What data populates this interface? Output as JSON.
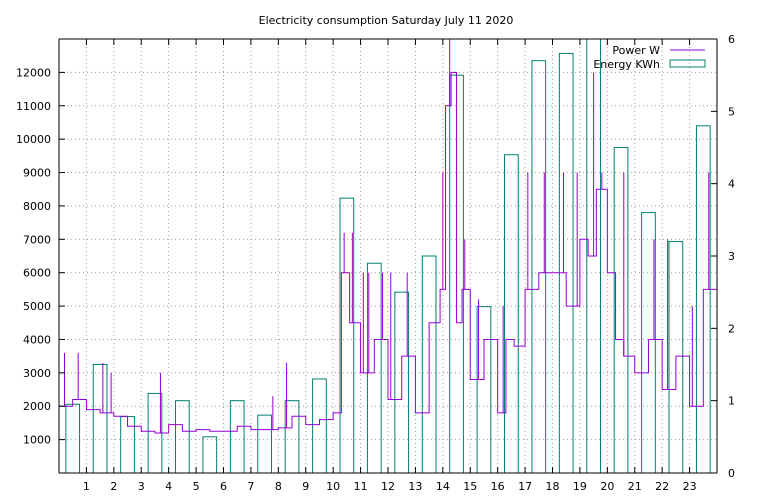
{
  "chart_data": {
    "type": "bar",
    "title": "Electricity consumption Saturday July 11 2020",
    "xlabel": "",
    "ylabel": "",
    "y2label": "",
    "x_ticks": [
      "1",
      "2",
      "3",
      "4",
      "5",
      "6",
      "7",
      "8",
      "9",
      "10",
      "11",
      "12",
      "13",
      "14",
      "15",
      "16",
      "17",
      "18",
      "19",
      "20",
      "21",
      "22",
      "23"
    ],
    "xlim": [
      0,
      24
    ],
    "y_ticks": [
      1000,
      2000,
      3000,
      4000,
      5000,
      6000,
      7000,
      8000,
      9000,
      10000,
      11000,
      12000
    ],
    "ylim": [
      0,
      13000
    ],
    "y2_ticks": [
      0,
      1,
      2,
      3,
      4,
      5,
      6
    ],
    "y2lim": [
      0,
      6
    ],
    "grid": true,
    "legend_position": "top-right",
    "series": [
      {
        "name": "Energy KWh",
        "type": "bar",
        "axis": "y2",
        "color": "#00806f",
        "x": [
          0,
          1,
          2,
          3,
          4,
          5,
          6,
          7,
          8,
          9,
          10,
          11,
          12,
          13,
          14,
          15,
          16,
          17,
          18,
          19,
          20,
          21,
          22,
          23
        ],
        "values": [
          0.95,
          1.5,
          0.78,
          1.1,
          1.0,
          0.5,
          1.0,
          0.8,
          1.0,
          1.3,
          3.8,
          2.9,
          2.5,
          3.0,
          5.5,
          2.3,
          4.4,
          5.7,
          5.8,
          6.0,
          4.5,
          3.6,
          3.2,
          4.8
        ]
      },
      {
        "name": "Power W",
        "type": "line",
        "axis": "y",
        "color": "#9400d3",
        "x": [
          0,
          0.5,
          1,
          1.5,
          2,
          2.5,
          3,
          3.5,
          4,
          4.5,
          5,
          5.5,
          6,
          6.5,
          7,
          7.5,
          8,
          8.5,
          9,
          9.5,
          10,
          10.3,
          10.6,
          11,
          11.5,
          12,
          12.5,
          13,
          13.5,
          13.9,
          14.1,
          14.3,
          14.5,
          14.7,
          15,
          15.5,
          16,
          16.3,
          16.6,
          17,
          17.5,
          18,
          18.5,
          19,
          19.3,
          19.6,
          20,
          20.3,
          20.6,
          21,
          21.5,
          22,
          22.5,
          23,
          23.5,
          24
        ],
        "values": [
          2000,
          2200,
          1900,
          1800,
          1700,
          1400,
          1250,
          1200,
          1450,
          1250,
          1300,
          1250,
          1250,
          1400,
          1300,
          1300,
          1350,
          1700,
          1450,
          1600,
          1800,
          6000,
          4500,
          3000,
          4000,
          2200,
          3500,
          1800,
          4500,
          5500,
          11000,
          12000,
          4500,
          5500,
          2800,
          4000,
          1800,
          4000,
          3800,
          5500,
          6000,
          6000,
          5000,
          7000,
          6500,
          8500,
          6000,
          4000,
          3500,
          3000,
          4000,
          2500,
          3500,
          2000,
          5500,
          6000
        ],
        "spikes_x": [
          0.2,
          0.7,
          1.6,
          1.9,
          3.7,
          7.8,
          8.3,
          10.4,
          10.7,
          11.1,
          11.3,
          11.8,
          12.1,
          12.7,
          13.6,
          14.0,
          14.25,
          14.4,
          14.8,
          15.3,
          16.2,
          17.1,
          17.7,
          18.4,
          18.9,
          19.5,
          19.8,
          20.6,
          21.7,
          22.2,
          23.1,
          23.7
        ],
        "spikes_values": [
          3600,
          3600,
          3300,
          3000,
          3000,
          2300,
          3300,
          7200,
          7200,
          6000,
          6000,
          6000,
          6000,
          6000,
          4500,
          9000,
          13000,
          12000,
          7000,
          5200,
          5000,
          9000,
          9000,
          9000,
          9000,
          12000,
          9000,
          9000,
          7000,
          7000,
          5000,
          9000
        ]
      }
    ]
  }
}
